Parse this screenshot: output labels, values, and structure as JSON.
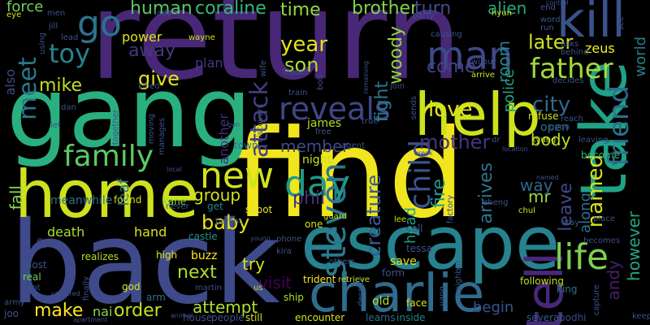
{
  "words": [
    {
      "text": "find",
      "color": "#f0e51f"
    },
    {
      "text": "return",
      "color": "#482777"
    },
    {
      "text": "gang",
      "color": "#2ab07f"
    },
    {
      "text": "back",
      "color": "#3e4a89"
    },
    {
      "text": "escape",
      "color": "#26828e"
    },
    {
      "text": "home",
      "color": "#cde11d"
    },
    {
      "text": "take",
      "color": "#1fa287"
    },
    {
      "text": "help",
      "color": "#cde11d"
    },
    {
      "text": "charlie",
      "color": "#2f6c8e"
    },
    {
      "text": "tell",
      "color": "#482878"
    },
    {
      "text": "kill",
      "color": "#3b528b"
    },
    {
      "text": "reveals",
      "color": "#3f4788"
    },
    {
      "text": "family",
      "color": "#5dc963"
    },
    {
      "text": "father",
      "color": "#a2da37"
    },
    {
      "text": "man",
      "color": "#3e4989"
    },
    {
      "text": "go",
      "color": "#2c728e"
    },
    {
      "text": "new",
      "color": "#d2e21b"
    },
    {
      "text": "day",
      "color": "#1f9a8a"
    },
    {
      "text": "life",
      "color": "#7ad151"
    },
    {
      "text": "steven",
      "color": "#2a788e"
    },
    {
      "text": "child",
      "color": "#3b528b"
    },
    {
      "text": "attack",
      "color": "#433e85"
    },
    {
      "text": "toy",
      "color": "#25838e"
    },
    {
      "text": "meet",
      "color": "#2a788e"
    },
    {
      "text": "city",
      "color": "#31688e"
    },
    {
      "text": "love",
      "color": "#e1e31a"
    },
    {
      "text": "mike",
      "color": "#c0df25"
    },
    {
      "text": "give",
      "color": "#e5e419"
    },
    {
      "text": "year",
      "color": "#e2e418"
    },
    {
      "text": "son",
      "color": "#aadc32"
    },
    {
      "text": "away",
      "color": "#453781"
    },
    {
      "text": "coraline",
      "color": "#35b779"
    },
    {
      "text": "human",
      "color": "#58c765"
    },
    {
      "text": "brother",
      "color": "#7fd34e"
    },
    {
      "text": "time",
      "color": "#95d840"
    },
    {
      "text": "turn",
      "color": "#3d4d8a"
    },
    {
      "text": "alien",
      "color": "#22a884"
    },
    {
      "text": "later",
      "color": "#cae11f"
    },
    {
      "text": "force",
      "color": "#75d054"
    },
    {
      "text": "woody",
      "color": "#93d741"
    },
    {
      "text": "fight",
      "color": "#2a778e"
    },
    {
      "text": "come",
      "color": "#414487"
    },
    {
      "text": "room",
      "color": "#24868e"
    },
    {
      "text": "police",
      "color": "#20a386"
    },
    {
      "text": "friend",
      "color": "#2e6e8e"
    },
    {
      "text": "named",
      "color": "#d8e219"
    },
    {
      "text": "mother",
      "color": "#46337e"
    },
    {
      "text": "member",
      "color": "#3f4889"
    },
    {
      "text": "group",
      "color": "#cde11d"
    },
    {
      "text": "phil",
      "color": "#472d7b"
    },
    {
      "text": "creature",
      "color": "#375b8d"
    },
    {
      "text": "fire",
      "color": "#1e9b8a"
    },
    {
      "text": "arrives",
      "color": "#2b758e"
    },
    {
      "text": "leave",
      "color": "#3e4989"
    },
    {
      "text": "mr",
      "color": "#9bd93c"
    },
    {
      "text": "baby",
      "color": "#e7e419"
    },
    {
      "text": "next",
      "color": "#addc30"
    },
    {
      "text": "try",
      "color": "#d5e21a"
    },
    {
      "text": "order",
      "color": "#c5e021"
    },
    {
      "text": "make",
      "color": "#fde725"
    },
    {
      "text": "attempt",
      "color": "#b0dd2f"
    },
    {
      "text": "visit",
      "color": "#440154"
    },
    {
      "text": "begin",
      "color": "#3a538b"
    },
    {
      "text": "andy",
      "color": "#481f70"
    },
    {
      "text": "however",
      "color": "#22a785"
    },
    {
      "text": "along",
      "color": "#2d708e"
    },
    {
      "text": "way",
      "color": "#32648e"
    },
    {
      "text": "body",
      "color": "#b5de2b"
    },
    {
      "text": "world",
      "color": "#287d8e"
    },
    {
      "text": "zeus",
      "color": "#ecf127"
    },
    {
      "text": "power",
      "color": "#dde318"
    },
    {
      "text": "plan",
      "color": "#453882"
    },
    {
      "text": "also",
      "color": "#3e4a89"
    },
    {
      "text": "fall",
      "color": "#8bd646"
    },
    {
      "text": "death",
      "color": "#a8db34"
    },
    {
      "text": "become",
      "color": "#32b67a"
    },
    {
      "text": "hand",
      "color": "#dae319"
    },
    {
      "text": "leaf",
      "color": "#2c728e"
    },
    {
      "text": "buzz",
      "color": "#fde725"
    },
    {
      "text": "nai",
      "color": "#8bd646"
    },
    {
      "text": "james",
      "color": "#b2dd2d"
    },
    {
      "text": "night",
      "color": "#cde11d"
    },
    {
      "text": "another",
      "color": "#472d7b"
    },
    {
      "text": "meanwhile",
      "color": "#2e6f8e"
    },
    {
      "text": "found",
      "color": "#cae11f"
    },
    {
      "text": "open",
      "color": "#2d718e"
    },
    {
      "text": "refuse",
      "color": "#cde11d"
    },
    {
      "text": "head",
      "color": "#1e9c89"
    },
    {
      "text": "kane",
      "color": "#8fd744"
    },
    {
      "text": "high",
      "color": "#e5e419"
    },
    {
      "text": "arm",
      "color": "#2e6e8e"
    },
    {
      "text": "town",
      "color": "#2d718e"
    },
    {
      "text": "shoot",
      "color": "#e7e419"
    },
    {
      "text": "get",
      "color": "#26828e"
    },
    {
      "text": "castle",
      "color": "#1f958b"
    },
    {
      "text": "save",
      "color": "#e2e418"
    },
    {
      "text": "one",
      "color": "#cde11d"
    },
    {
      "text": "old",
      "color": "#b5de2b"
    },
    {
      "text": "form",
      "color": "#3b528b"
    },
    {
      "text": "face",
      "color": "#dde318"
    },
    {
      "text": "ship",
      "color": "#b2dd2d"
    },
    {
      "text": "trident",
      "color": "#fde725"
    },
    {
      "text": "king",
      "color": "#2c728e"
    },
    {
      "text": "several",
      "color": "#34608d"
    },
    {
      "text": "encounter",
      "color": "#d8e219"
    },
    {
      "text": "learns",
      "color": "#2d708e"
    },
    {
      "text": "inside",
      "color": "#25838e"
    },
    {
      "text": "following",
      "color": "#c2df23"
    },
    {
      "text": "bodhi",
      "color": "#3e4a89"
    },
    {
      "text": "still",
      "color": "#d0e11c"
    },
    {
      "text": "people",
      "color": "#3b528b"
    },
    {
      "text": "house",
      "color": "#3b528b"
    },
    {
      "text": "real",
      "color": "#6ece58"
    },
    {
      "text": "ghost",
      "color": "#3b528b"
    },
    {
      "text": "god",
      "color": "#d5e21a"
    },
    {
      "text": "us",
      "color": "#b5de2b"
    },
    {
      "text": "martin",
      "color": "#3b528b"
    },
    {
      "text": "realizes",
      "color": "#b5de2b"
    },
    {
      "text": "fly",
      "color": "#3e4989"
    },
    {
      "text": "joo",
      "color": "#3b528b"
    },
    {
      "text": "army",
      "color": "#3b528b"
    },
    {
      "text": "finally",
      "color": "#3b528b"
    },
    {
      "text": "shot",
      "color": "#3b528b"
    },
    {
      "text": "dan",
      "color": "#3b528b"
    },
    {
      "text": "let",
      "color": "#3b528b"
    },
    {
      "text": "eye",
      "color": "#d5e21a"
    },
    {
      "text": "men",
      "color": "#3b528b"
    },
    {
      "text": "lead",
      "color": "#3b528b"
    },
    {
      "text": "lady",
      "color": "#3b528b"
    },
    {
      "text": "wayne",
      "color": "#cde11d"
    },
    {
      "text": "killed",
      "color": "#3b528b"
    },
    {
      "text": "together",
      "color": "#3b528b"
    },
    {
      "text": "moving",
      "color": "#3b528b"
    },
    {
      "text": "manages",
      "color": "#3b528b"
    },
    {
      "text": "leader",
      "color": "#3b528b"
    },
    {
      "text": "discovers",
      "color": "#3b528b"
    },
    {
      "text": "wife",
      "color": "#3b528b"
    },
    {
      "text": "train",
      "color": "#3b528b"
    },
    {
      "text": "bob",
      "color": "#3b528b"
    },
    {
      "text": "free",
      "color": "#3b528b"
    },
    {
      "text": "true",
      "color": "#3b528b"
    },
    {
      "text": "agent",
      "color": "#3b528b"
    },
    {
      "text": "retrieve",
      "color": "#cde11d"
    },
    {
      "text": "guard",
      "color": "#cde11d"
    },
    {
      "text": "lee",
      "color": "#cde11d"
    },
    {
      "text": "call",
      "color": "#3b528b"
    },
    {
      "text": "tessa",
      "color": "#3b528b"
    },
    {
      "text": "despite",
      "color": "#3b528b"
    },
    {
      "text": "neighbor",
      "color": "#3b528b"
    },
    {
      "text": "factory",
      "color": "#3b528b"
    },
    {
      "text": "zheng",
      "color": "#3b528b"
    },
    {
      "text": "chul",
      "color": "#cde11d"
    },
    {
      "text": "place",
      "color": "#3b528b"
    },
    {
      "text": "becomes",
      "color": "#3b528b"
    },
    {
      "text": "stay",
      "color": "#3b528b"
    },
    {
      "text": "capture",
      "color": "#3b528b"
    },
    {
      "text": "keep",
      "color": "#3b528b"
    },
    {
      "text": "leaving",
      "color": "#3b528b"
    },
    {
      "text": "upon",
      "color": "#3b528b"
    },
    {
      "text": "reach",
      "color": "#3b528b"
    },
    {
      "text": "kyung",
      "color": "#cde11d"
    },
    {
      "text": "decides",
      "color": "#3b528b"
    },
    {
      "text": "wilbur",
      "color": "#3b528b"
    },
    {
      "text": "arrive",
      "color": "#cde11d"
    },
    {
      "text": "join",
      "color": "#3b528b"
    },
    {
      "text": "sends",
      "color": "#3b528b"
    },
    {
      "text": "hyun",
      "color": "#cde11d"
    },
    {
      "text": "causing",
      "color": "#3b528b"
    },
    {
      "text": "party",
      "color": "#3b528b"
    },
    {
      "text": "word",
      "color": "#3b528b"
    },
    {
      "text": "run",
      "color": "#3b528b"
    },
    {
      "text": "asks",
      "color": "#3b528b"
    },
    {
      "text": "behind",
      "color": "#3b528b"
    },
    {
      "text": "end",
      "color": "#3b528b"
    },
    {
      "text": "see",
      "color": "#3b528b"
    },
    {
      "text": "control",
      "color": "#3b528b"
    },
    {
      "text": "gun",
      "color": "#3b528b"
    },
    {
      "text": "dr",
      "color": "#3b528b"
    },
    {
      "text": "break",
      "color": "#3b528b"
    },
    {
      "text": "parent",
      "color": "#3b528b"
    },
    {
      "text": "young",
      "color": "#3b528b"
    },
    {
      "text": "phone",
      "color": "#3b528b"
    },
    {
      "text": "kira",
      "color": "#3b528b"
    },
    {
      "text": "others",
      "color": "#3b528b"
    },
    {
      "text": "never",
      "color": "#3b528b"
    },
    {
      "text": "local",
      "color": "#3b528b"
    },
    {
      "text": "captured",
      "color": "#3b528b"
    },
    {
      "text": "apartment",
      "color": "#3b528b"
    },
    {
      "text": "animal",
      "color": "#3b528b"
    },
    {
      "text": "location",
      "color": "#3b528b"
    },
    {
      "text": "named",
      "color": "#3b528b"
    },
    {
      "text": "jill",
      "color": "#3b528b"
    },
    {
      "text": "using",
      "color": "#3b528b"
    },
    {
      "text": "remaining",
      "color": "#3b528b"
    },
    {
      "text": "yang",
      "color": "#3b528b"
    }
  ]
}
